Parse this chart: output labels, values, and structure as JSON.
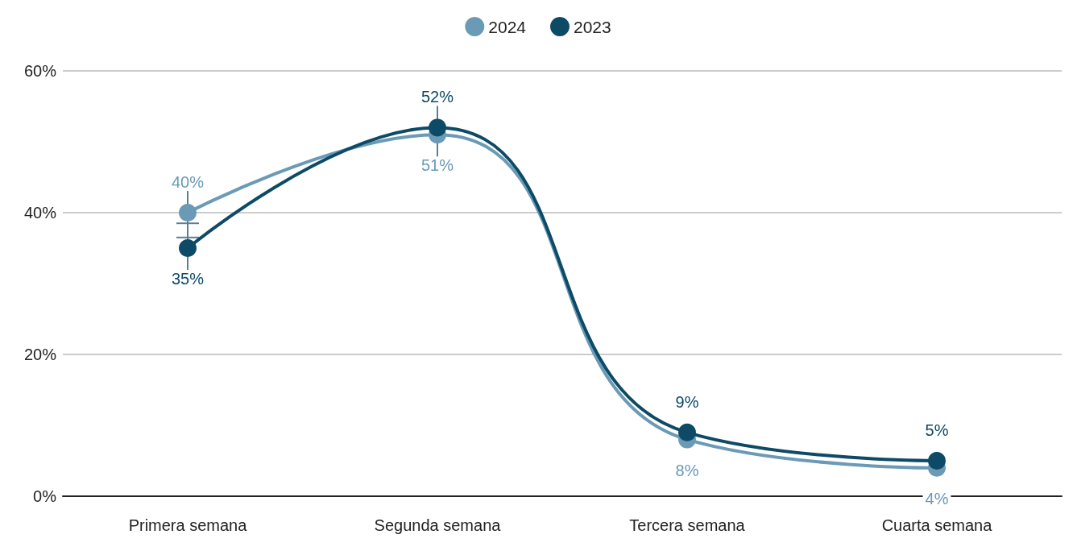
{
  "chart_data": {
    "type": "line",
    "categories": [
      "Primera semana",
      "Segunda semana",
      "Tercera semana",
      "Cuarta semana"
    ],
    "series": [
      {
        "name": "2024",
        "color": "#6a9ab5",
        "values": [
          40,
          51,
          8,
          4
        ],
        "value_labels": [
          "40%",
          "51%",
          "8%",
          "4%"
        ],
        "errors": [
          3.5,
          5,
          null,
          null
        ]
      },
      {
        "name": "2023",
        "color": "#0d4a66",
        "values": [
          35,
          52,
          9,
          5
        ],
        "value_labels": [
          "35%",
          "52%",
          "9%",
          "5%"
        ],
        "errors": [
          3.5,
          5,
          null,
          null
        ]
      }
    ],
    "ylim": [
      0,
      60
    ],
    "yticks": [
      {
        "value": 0,
        "label": "0%"
      },
      {
        "value": 20,
        "label": "20%"
      },
      {
        "value": 40,
        "label": "40%"
      },
      {
        "value": 60,
        "label": "60%"
      }
    ],
    "grid": "y",
    "legend": "top",
    "marker": "circle",
    "line_style": "solid"
  }
}
